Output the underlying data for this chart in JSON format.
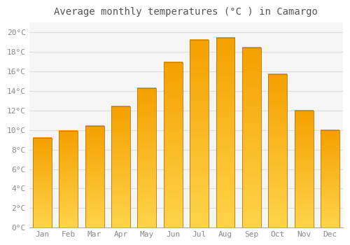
{
  "title": "Average monthly temperatures (°C ) in Camargo",
  "months": [
    "Jan",
    "Feb",
    "Mar",
    "Apr",
    "May",
    "Jun",
    "Jul",
    "Aug",
    "Sep",
    "Oct",
    "Nov",
    "Dec"
  ],
  "temperatures": [
    9.2,
    9.9,
    10.4,
    12.4,
    14.3,
    16.9,
    19.2,
    19.4,
    18.4,
    15.7,
    12.0,
    10.0
  ],
  "bar_color_bottom": "#FFD44A",
  "bar_color_top": "#F5A000",
  "bar_edge_color": "#B87800",
  "yticks": [
    0,
    2,
    4,
    6,
    8,
    10,
    12,
    14,
    16,
    18,
    20
  ],
  "ytick_labels": [
    "0°C",
    "2°C",
    "4°C",
    "6°C",
    "8°C",
    "10°C",
    "12°C",
    "14°C",
    "16°C",
    "18°C",
    "20°C"
  ],
  "ylim": [
    0,
    21
  ],
  "background_color": "#ffffff",
  "plot_bg_color": "#f5f5f5",
  "grid_color": "#dddddd",
  "title_fontsize": 10,
  "tick_fontsize": 8,
  "bar_width": 0.72
}
